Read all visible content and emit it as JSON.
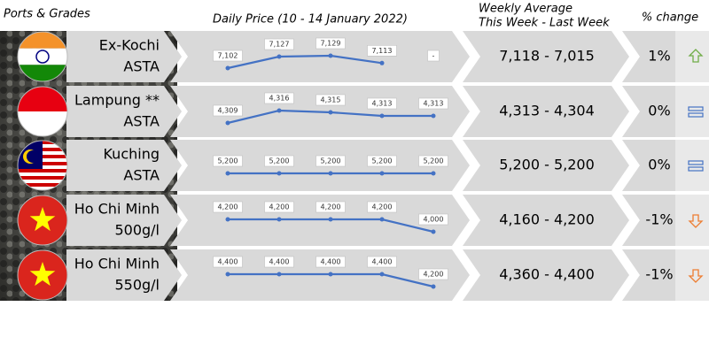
{
  "header": {
    "ports": "Ports & Grades",
    "daily": "Daily Price (10 - 14 January 2022)",
    "weekly_1": "Weekly Average",
    "weekly_2": "This Week - Last Week",
    "change": "% change"
  },
  "rows": [
    {
      "port": "Ex-Kochi",
      "grade": "ASTA",
      "prices": [
        7102,
        7127,
        7129,
        7113,
        null
      ],
      "price_labels": [
        "7,102",
        "7,127",
        "7,129",
        "7,113",
        "-"
      ],
      "weekly": "7,118 - 7,015",
      "change": "1%"
    },
    {
      "port": "Lampung **",
      "grade": "ASTA",
      "prices": [
        4309,
        4316,
        4315,
        4313,
        4313
      ],
      "price_labels": [
        "4,309",
        "4,316",
        "4,315",
        "4,313",
        "4,313"
      ],
      "weekly": "4,313 - 4,304",
      "change": "0%"
    },
    {
      "port": "Kuching",
      "grade": "ASTA",
      "prices": [
        5200,
        5200,
        5200,
        5200,
        5200
      ],
      "price_labels": [
        "5,200",
        "5,200",
        "5,200",
        "5,200",
        "5,200"
      ],
      "weekly": "5,200 - 5,200",
      "change": "0%"
    },
    {
      "port": "Ho Chi Minh",
      "grade": "500g/l",
      "prices": [
        4200,
        4200,
        4200,
        4200,
        4000
      ],
      "price_labels": [
        "4,200",
        "4,200",
        "4,200",
        "4,200",
        "4,000"
      ],
      "weekly": "4,160 - 4,200",
      "change": "-1%"
    },
    {
      "port": "Ho Chi Minh",
      "grade": "550g/l",
      "prices": [
        4400,
        4400,
        4400,
        4400,
        4200
      ],
      "price_labels": [
        "4,400",
        "4,400",
        "4,400",
        "4,400",
        "4,200"
      ],
      "weekly": "4,360 - 4,400",
      "change": "-1%"
    }
  ]
}
